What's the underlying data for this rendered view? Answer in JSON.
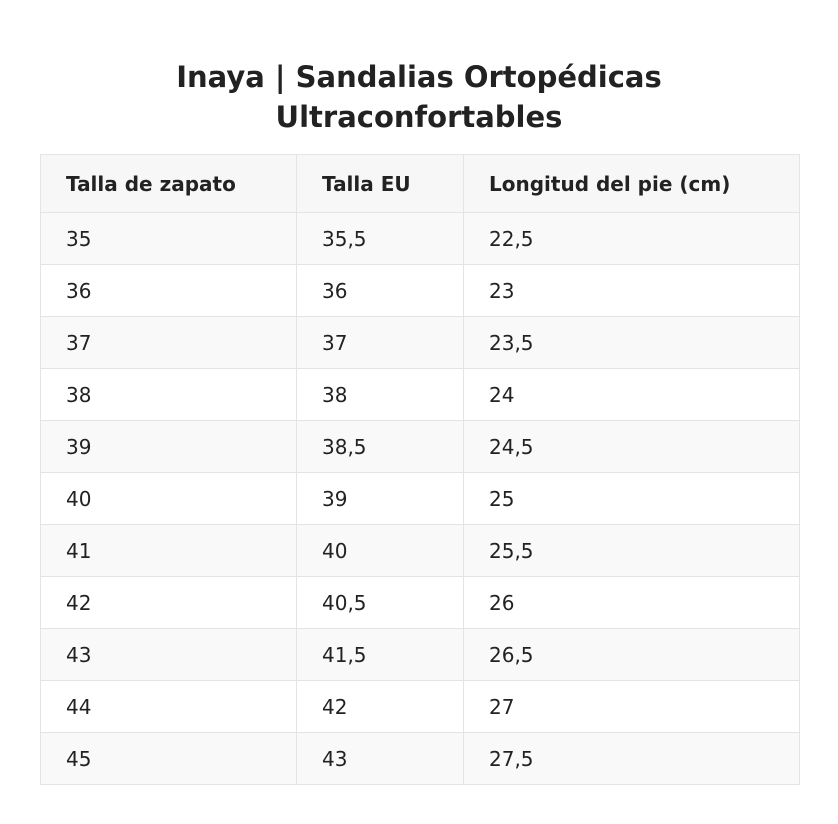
{
  "title": {
    "line1": "Inaya | Sandalias Ortopédicas",
    "line2": "Ultraconfortables"
  },
  "table": {
    "headers": [
      "Talla de zapato",
      "Talla EU",
      "Longitud del pie (cm)"
    ],
    "rows": [
      [
        "35",
        "35,5",
        "22,5"
      ],
      [
        "36",
        "36",
        "23"
      ],
      [
        "37",
        "37",
        "23,5"
      ],
      [
        "38",
        "38",
        "24"
      ],
      [
        "39",
        "38,5",
        "24,5"
      ],
      [
        "40",
        "39",
        "25"
      ],
      [
        "41",
        "40",
        "25,5"
      ],
      [
        "42",
        "40,5",
        "26"
      ],
      [
        "43",
        "41,5",
        "26,5"
      ],
      [
        "44",
        "42",
        "27"
      ],
      [
        "45",
        "43",
        "27,5"
      ]
    ]
  },
  "colors": {
    "text": "#222222",
    "header_bg": "#f7f7f7",
    "stripe_bg": "#f9f9f9",
    "border": "#e4e4e4"
  }
}
